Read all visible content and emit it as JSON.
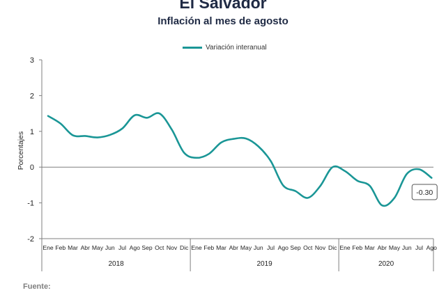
{
  "header": {
    "title": "El Salvador",
    "subtitle": "Inflación al mes de agosto"
  },
  "footer": {
    "source_label": "Fuente:"
  },
  "colors": {
    "series": "#1a9696",
    "text": "#1f2a44",
    "axis": "#7f7f7f"
  },
  "chart_data": {
    "type": "line",
    "title": "El Salvador",
    "subtitle": "Inflación al mes de agosto",
    "xlabel": "",
    "ylabel": "Porcentajes",
    "ylim": [
      -2,
      3
    ],
    "yticks": [
      3,
      2,
      1,
      0,
      -1,
      -2
    ],
    "grid": false,
    "legend_position": "top-center",
    "categories": [
      "Ene",
      "Feb",
      "Mar",
      "Abr",
      "May",
      "Jun",
      "Jul",
      "Ago",
      "Sep",
      "Oct",
      "Nov",
      "Dic",
      "Ene",
      "Feb",
      "Mar",
      "Abr",
      "May",
      "Jun",
      "Jul",
      "Ago",
      "Sep",
      "Oct",
      "Nov",
      "Dic",
      "Ene",
      "Feb",
      "Mar",
      "Abr",
      "May",
      "Jun",
      "Jul",
      "Ago"
    ],
    "years": [
      {
        "label": "2018",
        "start": 0,
        "end": 11
      },
      {
        "label": "2019",
        "start": 12,
        "end": 23
      },
      {
        "label": "2020",
        "start": 24,
        "end": 31
      }
    ],
    "series": [
      {
        "name": "Variación interanual",
        "values": [
          1.43,
          1.22,
          0.89,
          0.87,
          0.83,
          0.9,
          1.08,
          1.45,
          1.38,
          1.5,
          1.05,
          0.4,
          0.26,
          0.37,
          0.69,
          0.79,
          0.8,
          0.58,
          0.17,
          -0.51,
          -0.67,
          -0.86,
          -0.53,
          0.0,
          -0.11,
          -0.38,
          -0.52,
          -1.07,
          -0.86,
          -0.19,
          -0.06,
          -0.3
        ]
      }
    ],
    "annotations": [
      {
        "category_index": 31,
        "text": "-0.30"
      }
    ]
  }
}
